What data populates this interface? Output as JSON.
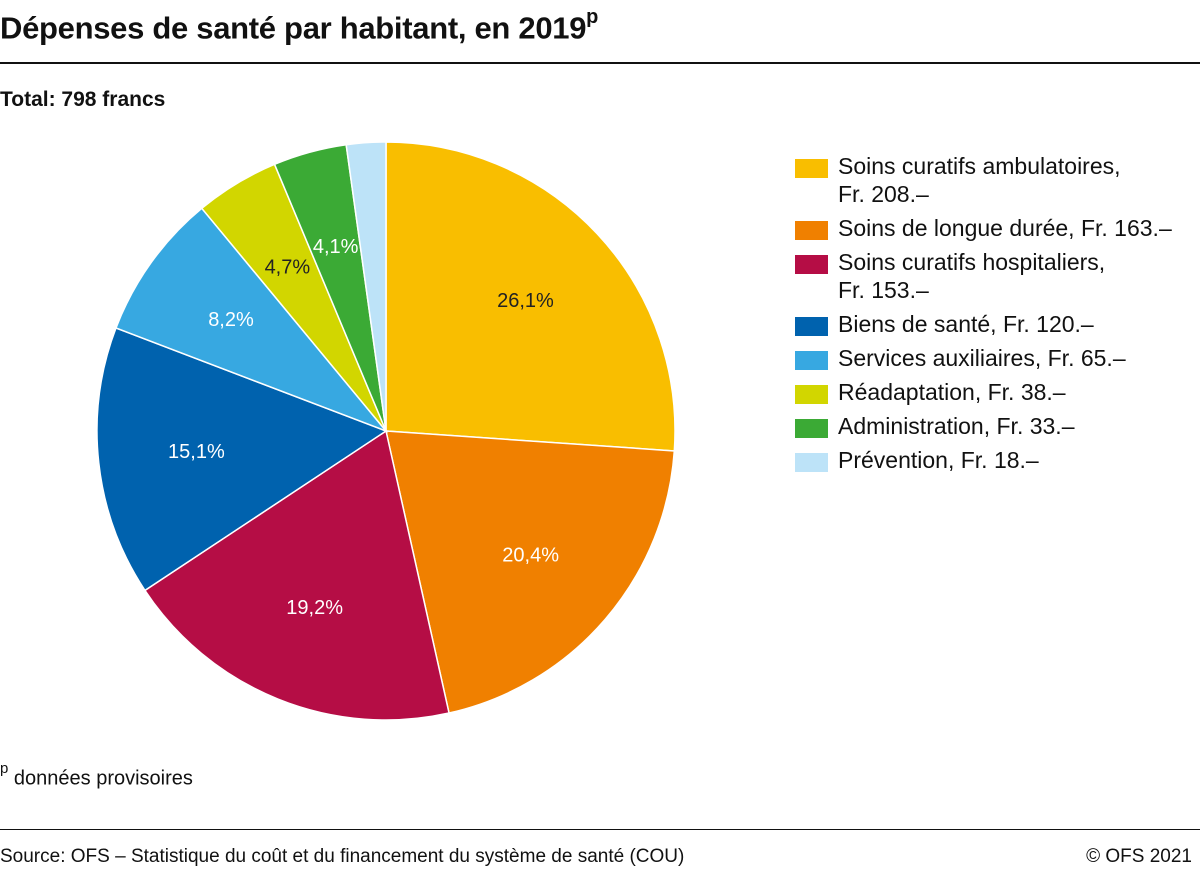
{
  "header": {
    "title": "Dépenses de santé par habitant, en 2019",
    "title_superscript": "p",
    "subtitle": "Total: 798 francs"
  },
  "chart_data": {
    "type": "pie",
    "title": "Dépenses de santé par habitant, en 2019",
    "subtitle": "Total: 798 francs",
    "start_angle": "12 o'clock",
    "direction": "clockwise",
    "legend_position": "right",
    "slices": [
      {
        "name": "Soins curatifs ambulatoires",
        "legend": "Soins curatifs ambulatoires,\nFr. 208.–",
        "value": 26.1,
        "label": "26,1%",
        "color": "#F9BE00",
        "label_color": "#222222"
      },
      {
        "name": "Soins de longue durée",
        "legend": "Soins de longue durée, Fr. 163.–",
        "value": 20.4,
        "label": "20,4%",
        "color": "#F08000",
        "label_color": "#ffffff"
      },
      {
        "name": "Soins curatifs hospitaliers",
        "legend": "Soins curatifs hospitaliers,\nFr. 153.–",
        "value": 19.2,
        "label": "19,2%",
        "color": "#B50D45",
        "label_color": "#ffffff"
      },
      {
        "name": "Biens de santé",
        "legend": "Biens de santé, Fr. 120.–",
        "value": 15.1,
        "label": "15,1%",
        "color": "#0062AE",
        "label_color": "#ffffff"
      },
      {
        "name": "Services auxiliaires",
        "legend": "Services auxiliaires, Fr. 65.–",
        "value": 8.2,
        "label": "8,2%",
        "color": "#37A8E1",
        "label_color": "#ffffff"
      },
      {
        "name": "Réadaptation",
        "legend": "Réadaptation, Fr. 38.–",
        "value": 4.7,
        "label": "4,7%",
        "color": "#D2D600",
        "label_color": "#222222"
      },
      {
        "name": "Administration",
        "legend": "Administration, Fr. 33.–",
        "value": 4.1,
        "label": "4,1%",
        "color": "#3BAA35",
        "label_color": "#ffffff"
      },
      {
        "name": "Prévention",
        "legend": "Prévention, Fr. 18.–",
        "value": 2.2,
        "label": "",
        "color": "#BDE3F8",
        "label_color": "#222222"
      }
    ]
  },
  "footnote": {
    "marker": "p",
    "text": " données provisoires"
  },
  "footer": {
    "source": "Source: OFS – Statistique du coût et du financement du système de santé (COU)",
    "copyright": "© OFS 2021"
  }
}
